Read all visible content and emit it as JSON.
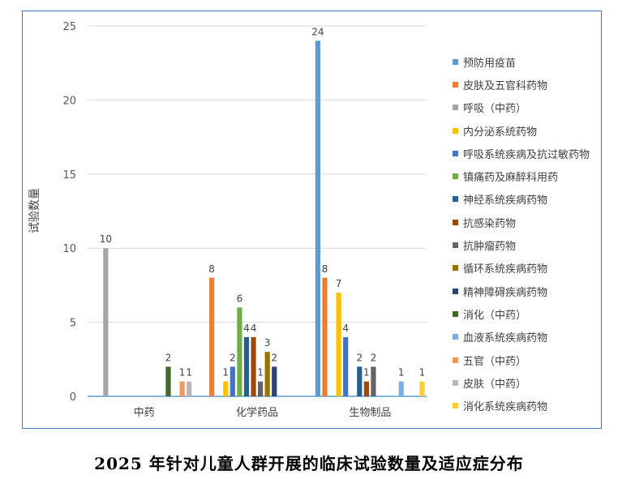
{
  "caption": "2025 年针对儿童人群开展的临床试验数量及适应症分布",
  "chart_data": {
    "type": "bar",
    "title": "",
    "xlabel": "",
    "ylabel": "试验数量",
    "ylim": [
      0,
      25
    ],
    "yticks": [
      0,
      5,
      10,
      15,
      20,
      25
    ],
    "grid": true,
    "legend_position": "right",
    "categories": [
      "中药",
      "化学药品",
      "生物制品"
    ],
    "series": [
      {
        "name": "预防用疫苗",
        "color": "#5b9bd5",
        "values": [
          null,
          null,
          24
        ]
      },
      {
        "name": "皮肤及五官科药物",
        "color": "#ed7d31",
        "values": [
          null,
          8,
          8
        ]
      },
      {
        "name": "呼吸（中药）",
        "color": "#a5a5a5",
        "values": [
          10,
          null,
          null
        ]
      },
      {
        "name": "内分泌系统药物",
        "color": "#ffc000",
        "values": [
          null,
          1,
          7
        ]
      },
      {
        "name": "呼吸系统疾病及抗过敏药物",
        "color": "#4472c4",
        "values": [
          null,
          2,
          4
        ]
      },
      {
        "name": "镇痛药及麻醉科用药",
        "color": "#70ad47",
        "values": [
          null,
          6,
          null
        ]
      },
      {
        "name": "神经系统疾病药物",
        "color": "#255e91",
        "values": [
          null,
          4,
          2
        ]
      },
      {
        "name": "抗感染药物",
        "color": "#9e480e",
        "values": [
          null,
          4,
          1
        ]
      },
      {
        "name": "抗肿瘤药物",
        "color": "#636363",
        "values": [
          null,
          1,
          2
        ]
      },
      {
        "name": "循环系统疾病药物",
        "color": "#997300",
        "values": [
          null,
          3,
          null
        ]
      },
      {
        "name": "精神障碍疾病药物",
        "color": "#264478",
        "values": [
          null,
          2,
          null
        ]
      },
      {
        "name": "消化（中药）",
        "color": "#43682b",
        "values": [
          2,
          null,
          null
        ]
      },
      {
        "name": "血液系统疾病药物",
        "color": "#7cafdd",
        "values": [
          null,
          null,
          1
        ]
      },
      {
        "name": "五官（中药）",
        "color": "#f1975a",
        "values": [
          1,
          null,
          null
        ]
      },
      {
        "name": "皮肤（中药）",
        "color": "#b7b7b7",
        "values": [
          1,
          null,
          null
        ]
      },
      {
        "name": "消化系统疾病药物",
        "color": "#ffcd33",
        "values": [
          null,
          null,
          1
        ]
      }
    ]
  }
}
